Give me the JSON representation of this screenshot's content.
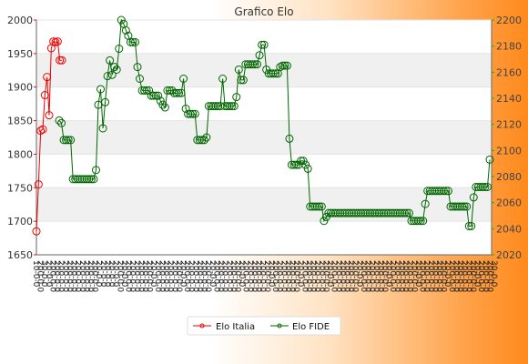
{
  "chart_data": {
    "type": "line",
    "title": "Grafico Elo",
    "xlabel": "",
    "ylabel": "",
    "y_left": {
      "lim": [
        1650,
        2000
      ],
      "ticks": [
        1650,
        1700,
        1750,
        1800,
        1850,
        1900,
        1950,
        2000
      ]
    },
    "y_right": {
      "lim": [
        2020,
        2200
      ],
      "ticks": [
        2020,
        2040,
        2060,
        2080,
        2100,
        2120,
        2140,
        2160,
        2180,
        2200
      ]
    },
    "grid": "horizontal bands",
    "legend_position": "bottom-center",
    "colors": {
      "italia": "#ee0000",
      "fide": "#006600",
      "tick_red": "#ff0000",
      "tick_green": "#00bb00"
    },
    "series": [
      {
        "name": "Elo Italia",
        "axis": "left",
        "values": [
          1685,
          1755,
          1835,
          1837,
          1888,
          1915,
          1858,
          1958,
          1968,
          1967,
          1968,
          1940,
          1940
        ]
      },
      {
        "name": "Elo FIDE",
        "axis": "right",
        "values": [
          2123,
          2121,
          2108,
          2108,
          2108,
          2108,
          2078,
          2078,
          2078,
          2078,
          2078,
          2078,
          2078,
          2078,
          2078,
          2078,
          2085,
          2135,
          2147,
          2117,
          2137,
          2157,
          2169,
          2158,
          2164,
          2162,
          2178,
          2200,
          2197,
          2192,
          2188,
          2183,
          2183,
          2183,
          2164,
          2155,
          2146,
          2146,
          2146,
          2146,
          2142,
          2142,
          2142,
          2142,
          2138,
          2135,
          2133,
          2146,
          2146,
          2146,
          2144,
          2144,
          2144,
          2144,
          2155,
          2132,
          2128,
          2128,
          2128,
          2128,
          2108,
          2108,
          2108,
          2108,
          2110,
          2134,
          2134,
          2134,
          2134,
          2134,
          2134,
          2155,
          2134,
          2134,
          2134,
          2134,
          2134,
          2141,
          2162,
          2154,
          2154,
          2166,
          2166,
          2166,
          2166,
          2166,
          2166,
          2173,
          2181,
          2181,
          2162,
          2159,
          2159,
          2159,
          2159,
          2159,
          2164,
          2165,
          2165,
          2165,
          2109,
          2089,
          2089,
          2089,
          2089,
          2092,
          2092,
          2089,
          2086,
          2057,
          2057,
          2057,
          2057,
          2057,
          2057,
          2046,
          2049,
          2052,
          2052,
          2052,
          2052,
          2052,
          2052,
          2052,
          2052,
          2052,
          2052,
          2052,
          2052,
          2052,
          2052,
          2052,
          2052,
          2052,
          2052,
          2052,
          2052,
          2052,
          2052,
          2052,
          2052,
          2052,
          2052,
          2052,
          2052,
          2052,
          2052,
          2052,
          2052,
          2052,
          2052,
          2052,
          2052,
          2046,
          2046,
          2046,
          2046,
          2046,
          2046,
          2059,
          2069,
          2069,
          2069,
          2069,
          2069,
          2069,
          2069,
          2069,
          2069,
          2069,
          2057,
          2057,
          2057,
          2057,
          2057,
          2057,
          2057,
          2057,
          2042,
          2042,
          2064,
          2072,
          2072,
          2072,
          2072,
          2072,
          2072,
          2093
        ]
      }
    ],
    "x_labels_left": [
      "1",
      "20",
      "3",
      "2",
      "20",
      "20",
      "20",
      "20",
      "20",
      "20",
      "20",
      "20",
      "20",
      "20",
      "20",
      "2",
      "2",
      "2",
      "2",
      "2"
    ],
    "x_labels_right": [
      "20",
      "20",
      "20",
      "20",
      "20",
      "20",
      "20",
      "20",
      "20",
      "20",
      "20",
      "20",
      "20",
      "20",
      "20",
      "20",
      "20",
      "20",
      "20",
      "20",
      "20",
      "20",
      "20",
      "20",
      "20",
      "20",
      "20",
      "20",
      "20",
      "20",
      "20",
      "20",
      "20",
      "20",
      "3"
    ]
  }
}
